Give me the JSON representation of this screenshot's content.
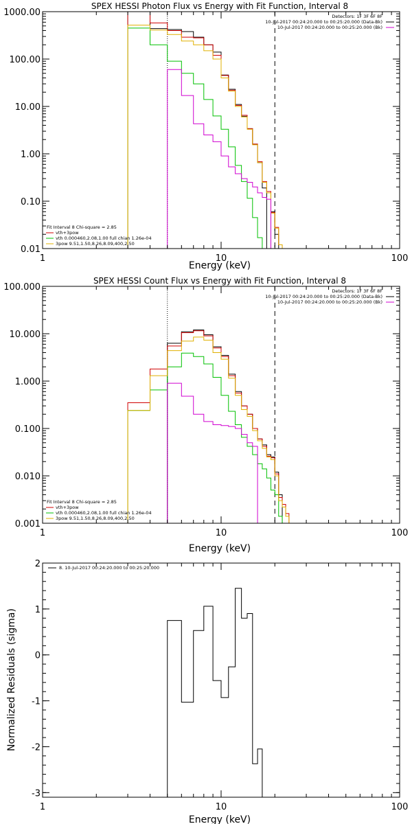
{
  "chart_data": [
    {
      "type": "line",
      "title": "SPEX HESSI Photon Flux vs Energy with Fit Function, Interval 8",
      "xlabel": "Energy (keV)",
      "ylabel": "",
      "xscale": "log",
      "yscale": "log",
      "xlim": [
        1,
        100
      ],
      "ylim": [
        0.01,
        1000
      ],
      "xticks": [
        "1",
        "10",
        "100"
      ],
      "yticks": [
        "0.01",
        "0.10",
        "1.00",
        "10.00",
        "100.00",
        "1000.00"
      ],
      "grid": false,
      "vlines": [
        {
          "x": 5,
          "style": "dotted"
        },
        {
          "x": 20,
          "style": "dashed"
        }
      ],
      "legend_top": {
        "placement": "top-right",
        "lines": [
          {
            "text": "Detectors: 1F 3F 6F 8F",
            "color": "#000000",
            "swatch": false
          },
          {
            "text": "10-Jul-2017 00:24:20.000 to 00:25:20.000 (Data-Bk)",
            "color": "#000000",
            "swatch": true
          },
          {
            "text": "10-Jul-2017 00:24:20.000 to 00:25:20.000 (Bk)",
            "color": "#d000d0",
            "swatch": true
          }
        ]
      },
      "legend_bottom": {
        "placement": "bottom-left",
        "lines": [
          {
            "text": "Fit Interval 8   Chi-square = 2.85",
            "color": "#000000",
            "swatch": false
          },
          {
            "text": "vth+3pow",
            "color": "#d00000",
            "swatch": true
          },
          {
            "text": "vth 0.000460,2.08,1.00   full chian 1.26e-04",
            "color": "#00c000",
            "swatch": true
          },
          {
            "text": "3pow 9.51,1.50,8.26,8.09,400,2.50",
            "color": "#e0b000",
            "swatch": true
          }
        ]
      },
      "edges": [
        3,
        4,
        5,
        6,
        7,
        8,
        9,
        10,
        11,
        12,
        13,
        14,
        15,
        16,
        17,
        18,
        19,
        20,
        21,
        22,
        23,
        24,
        25
      ],
      "series": [
        {
          "name": "Data-Bk",
          "color": "#000000",
          "values": [
            1000,
            440,
            420,
            380,
            290,
            200,
            140,
            46,
            23,
            11,
            6.2,
            3.4,
            1.6,
            0.65,
            0.19,
            null,
            0.06,
            0.02,
            null,
            null,
            null,
            null
          ]
        },
        {
          "name": "vth+3pow",
          "color": "#d00000",
          "values": [
            1000,
            580,
            400,
            290,
            280,
            200,
            120,
            45,
            22,
            10.5,
            6.5,
            3.4,
            1.6,
            0.68,
            0.26,
            0.16,
            0.058,
            0.028,
            0.012,
            null,
            null,
            null
          ]
        },
        {
          "name": "vth",
          "color": "#00c000",
          "values": [
            450,
            200,
            90,
            50,
            30,
            14,
            6.3,
            3.3,
            1.4,
            0.57,
            0.26,
            0.115,
            0.045,
            0.017,
            null,
            null,
            null,
            null,
            null,
            null,
            null,
            null
          ]
        },
        {
          "name": "3pow",
          "color": "#e0b000",
          "values": [
            520,
            410,
            330,
            240,
            200,
            150,
            100,
            40,
            21,
            10,
            6.0,
            3.3,
            1.55,
            0.65,
            0.25,
            0.15,
            0.056,
            0.027,
            0.012,
            null,
            null,
            null
          ]
        },
        {
          "name": "Bk",
          "color": "#d000d0",
          "values": [
            null,
            null,
            60,
            17,
            4.3,
            2.5,
            1.8,
            0.9,
            0.53,
            0.38,
            0.3,
            0.25,
            0.2,
            0.15,
            0.12,
            0.11,
            null,
            null,
            null,
            null,
            null,
            null
          ]
        }
      ]
    },
    {
      "type": "line",
      "title": "SPEX HESSI Count Flux vs Energy with Fit Function, Interval 8",
      "xlabel": "Energy (keV)",
      "ylabel": "",
      "xscale": "log",
      "yscale": "log",
      "xlim": [
        1,
        100
      ],
      "ylim": [
        0.001,
        100
      ],
      "xticks": [
        "1",
        "10",
        "100"
      ],
      "yticks": [
        "0.001",
        "0.010",
        "0.100",
        "1.000",
        "10.000",
        "100.000"
      ],
      "grid": false,
      "vlines": [
        {
          "x": 5,
          "style": "dotted"
        },
        {
          "x": 20,
          "style": "dashed"
        }
      ],
      "legend_top": {
        "placement": "top-right",
        "lines": [
          {
            "text": "Detectors: 1F 3F 6F 8F",
            "color": "#000000",
            "swatch": false
          },
          {
            "text": "10-Jul-2017 00:24:20.000 to 00:25:20.000 (Data-Bk)",
            "color": "#000000",
            "swatch": true
          },
          {
            "text": "10-Jul-2017 00:24:20.000 to 00:25:20.000 (Bk)",
            "color": "#d000d0",
            "swatch": true
          }
        ]
      },
      "legend_bottom": {
        "placement": "bottom-left",
        "lines": [
          {
            "text": "Fit Interval 8   Chi-square = 2.85",
            "color": "#000000",
            "swatch": false
          },
          {
            "text": "vth+3pow",
            "color": "#d00000",
            "swatch": true
          },
          {
            "text": "vth 0.000460,2.08,1.00   full chian 1.26e-04",
            "color": "#00c000",
            "swatch": true
          },
          {
            "text": "3pow 9.51,1.50,8.26,8.09,400,2.50",
            "color": "#e0b000",
            "swatch": true
          }
        ]
      },
      "edges": [
        3,
        4,
        5,
        6,
        7,
        8,
        9,
        10,
        11,
        12,
        13,
        14,
        15,
        16,
        17,
        18,
        19,
        20,
        21,
        22,
        23,
        24,
        25
      ],
      "series": [
        {
          "name": "Data-Bk",
          "color": "#000000",
          "values": [
            null,
            null,
            6.3,
            11,
            12,
            9.5,
            5.3,
            3.5,
            1.4,
            0.6,
            0.3,
            0.2,
            0.1,
            0.06,
            0.045,
            0.028,
            0.025,
            0.012,
            0.004,
            null,
            null,
            null
          ]
        },
        {
          "name": "vth+3pow",
          "color": "#d00000",
          "values": [
            0.35,
            1.8,
            5.5,
            10.5,
            11.5,
            9.0,
            5.0,
            3.3,
            1.3,
            0.56,
            0.3,
            0.2,
            0.1,
            0.06,
            0.042,
            0.026,
            0.024,
            0.011,
            0.0035,
            0.0025,
            0.0016,
            null
          ]
        },
        {
          "name": "vth",
          "color": "#00c000",
          "values": [
            0.24,
            0.65,
            2.0,
            3.9,
            3.3,
            2.3,
            1.2,
            0.5,
            0.23,
            0.12,
            0.065,
            0.042,
            0.028,
            0.018,
            0.014,
            0.009,
            0.005,
            0.004,
            0.0014,
            null,
            null,
            null
          ]
        },
        {
          "name": "3pow",
          "color": "#e0b000",
          "values": [
            0.24,
            1.3,
            4.4,
            7.0,
            8.5,
            7.3,
            4.0,
            2.9,
            1.15,
            0.5,
            0.25,
            0.18,
            0.09,
            0.055,
            0.038,
            0.025,
            0.022,
            0.01,
            0.003,
            0.0022,
            0.0014,
            null
          ]
        },
        {
          "name": "Bk",
          "color": "#d000d0",
          "values": [
            null,
            null,
            0.9,
            0.48,
            0.2,
            0.14,
            0.12,
            0.115,
            0.11,
            0.1,
            0.075,
            0.05,
            0.042,
            null,
            null,
            null,
            null,
            null,
            null,
            null,
            null,
            null
          ]
        }
      ]
    },
    {
      "type": "line",
      "title": "",
      "xlabel": "Energy (keV)",
      "ylabel": "Normalized Residuals (sigma)",
      "xscale": "log",
      "yscale": "linear",
      "xlim": [
        1,
        100
      ],
      "ylim": [
        -3.1,
        2.0
      ],
      "xticks": [
        "1",
        "10",
        "100"
      ],
      "yticks": [
        "-3",
        "-2",
        "-1",
        "0",
        "1",
        "2"
      ],
      "grid": false,
      "legend_top": {
        "placement": "top-left",
        "lines": [
          {
            "text": "8. 10-Jul-2017 00:24:20.000 to 00:25:20.000",
            "color": "#000000",
            "swatch": true
          }
        ]
      },
      "edges": [
        5,
        6,
        7,
        8,
        9,
        10,
        11,
        12,
        13,
        14,
        15,
        16,
        17,
        18,
        19,
        20
      ],
      "series": [
        {
          "name": "8. 10-Jul-2017 00:24:20.000 to 00:25:20.000",
          "color": "#000000",
          "values": [
            0.75,
            -1.03,
            0.53,
            1.06,
            -0.56,
            -0.93,
            -0.26,
            1.45,
            0.8,
            0.9,
            -2.37,
            -2.05,
            null,
            null,
            null
          ]
        }
      ]
    }
  ]
}
